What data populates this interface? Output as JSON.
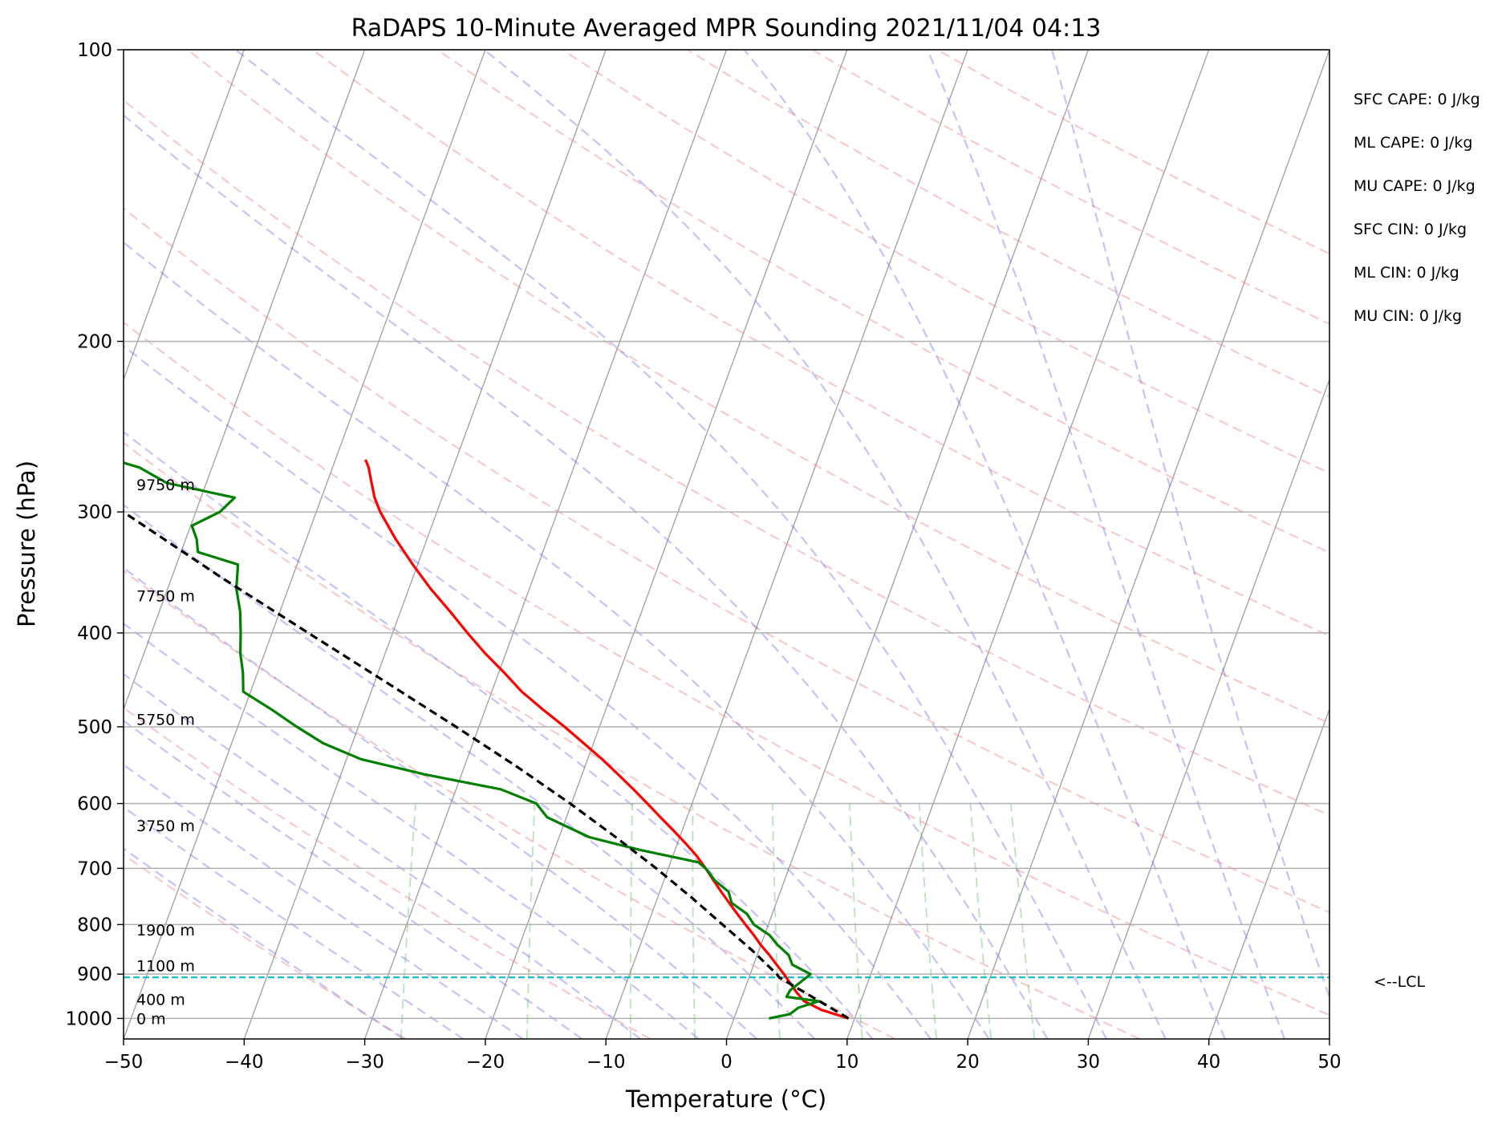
{
  "chart_data": {
    "type": "line",
    "title": "RaDAPS 10-Minute Averaged MPR Sounding 2021/11/04 04:13",
    "xlabel": "Temperature (°C)",
    "ylabel": "Pressure (hPa)",
    "xlim": [
      -50,
      50
    ],
    "ylim": [
      1050,
      100
    ],
    "y_scale": "log",
    "x_ticks": [
      "−50",
      "−40",
      "−30",
      "−20",
      "−10",
      "0",
      "10",
      "20",
      "30",
      "40",
      "50"
    ],
    "y_ticks": [
      "100",
      "200",
      "300",
      "400",
      "500",
      "600",
      "700",
      "800",
      "900",
      "1000"
    ],
    "grid": true,
    "skew_t": true,
    "height_labels": [
      {
        "text": "0 m",
        "p": 1000
      },
      {
        "text": "400 m",
        "p": 955
      },
      {
        "text": "1100 m",
        "p": 882
      },
      {
        "text": "1900 m",
        "p": 810
      },
      {
        "text": "3750 m",
        "p": 632
      },
      {
        "text": "5750 m",
        "p": 491
      },
      {
        "text": "7750 m",
        "p": 366
      },
      {
        "text": "9750 m",
        "p": 281
      }
    ],
    "stats": [
      "SFC CAPE: 0 J/kg",
      "ML CAPE: 0 J/kg",
      "MU CAPE: 0 J/kg",
      "SFC CIN: 0 J/kg",
      "ML CIN: 0 J/kg",
      "MU CIN: 0 J/kg"
    ],
    "lcl": {
      "label": "<--LCL",
      "p": 907,
      "color": "#17becf"
    },
    "series": [
      {
        "key": "temperature",
        "color": "#ff0000",
        "p": [
          1000,
          980,
          960,
          940,
          920,
          900,
          880,
          860,
          840,
          820,
          800,
          780,
          760,
          740,
          720,
          700,
          680,
          660,
          640,
          620,
          600,
          580,
          560,
          540,
          520,
          500,
          480,
          460,
          440,
          420,
          400,
          380,
          360,
          340,
          320,
          300,
          290,
          280,
          270,
          265
        ],
        "t": [
          9.5,
          7.0,
          5.3,
          4.4,
          3.6,
          2.8,
          1.9,
          1.0,
          0.0,
          -0.9,
          -1.9,
          -2.9,
          -3.9,
          -4.9,
          -5.9,
          -6.9,
          -8.0,
          -9.3,
          -10.7,
          -12.2,
          -13.7,
          -15.3,
          -17.0,
          -18.8,
          -20.8,
          -22.9,
          -25.2,
          -27.5,
          -29.5,
          -31.7,
          -33.8,
          -35.9,
          -38.2,
          -40.4,
          -42.6,
          -44.7,
          -45.6,
          -46.3,
          -47.0,
          -47.5
        ]
      },
      {
        "key": "dewpoint",
        "color": "#008000",
        "p": [
          1000,
          990,
          975,
          960,
          950,
          935,
          915,
          900,
          880,
          860,
          840,
          820,
          800,
          780,
          760,
          740,
          720,
          700,
          690,
          670,
          650,
          620,
          600,
          580,
          560,
          540,
          520,
          500,
          480,
          460,
          440,
          420,
          400,
          380,
          360,
          340,
          330,
          320,
          310,
          300,
          290,
          280,
          270,
          260
        ],
        "t": [
          2.9,
          4.5,
          5.0,
          6.5,
          3.7,
          3.8,
          4.5,
          5.0,
          3.2,
          2.6,
          1.4,
          0.4,
          -1.2,
          -2.1,
          -3.7,
          -4.3,
          -5.8,
          -6.9,
          -7.7,
          -12.9,
          -17.5,
          -21.6,
          -22.9,
          -26.3,
          -33.0,
          -38.8,
          -42.4,
          -45.1,
          -47.7,
          -50.6,
          -51.2,
          -52.0,
          -52.6,
          -53.3,
          -54.3,
          -54.9,
          -58.6,
          -59.1,
          -59.9,
          -58.0,
          -57.2,
          -63.3,
          -66.0,
          -70.9
        ]
      },
      {
        "key": "parcel",
        "color": "#000000",
        "dashed": true,
        "p": [
          1000,
          907,
          900,
          850,
          800,
          750,
          700,
          650,
          600,
          550,
          500,
          450,
          400,
          350,
          300,
          265
        ],
        "t": [
          9.5,
          2.5,
          2.2,
          -0.6,
          -3.8,
          -7.2,
          -11.0,
          -15.3,
          -20.1,
          -25.6,
          -31.9,
          -39.0,
          -47.0,
          -56.0,
          -66.0,
          -73.0
        ]
      }
    ]
  }
}
